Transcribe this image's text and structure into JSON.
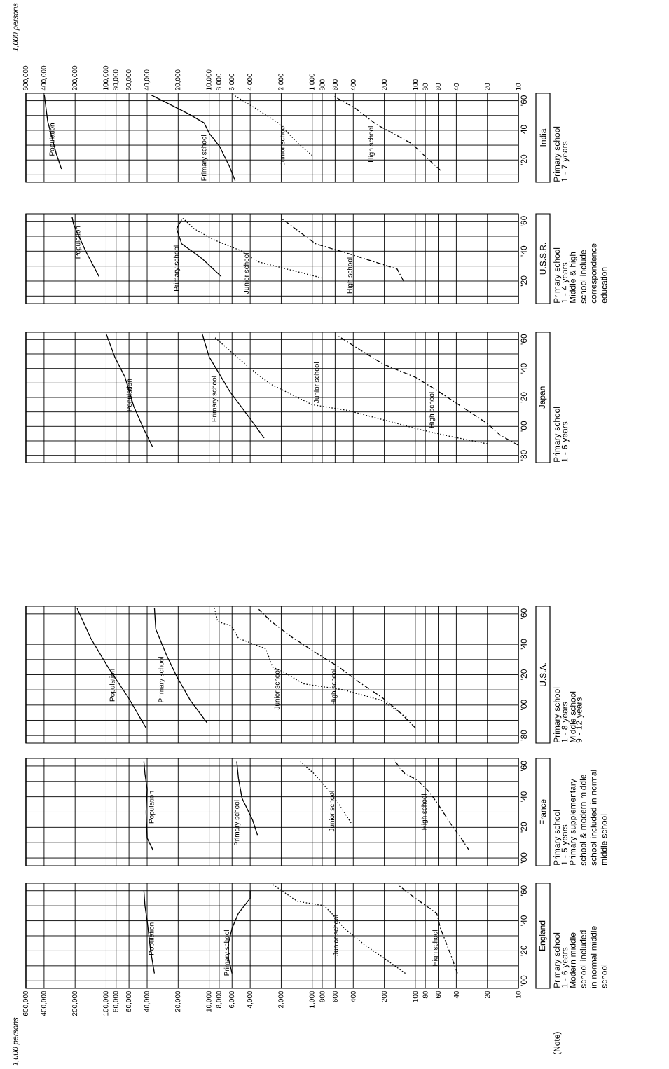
{
  "chart_data": [
    {
      "type": "line",
      "orientation": "horizontal",
      "log": "x",
      "grid": true,
      "ylim": [
        1895,
        1965
      ],
      "xlim": [
        600000,
        10
      ],
      "yticks": [
        {
          "value": 1900,
          "label": "’00"
        },
        {
          "value": 1910,
          "label": null
        },
        {
          "value": 1920,
          "label": "’20"
        },
        {
          "value": 1930,
          "label": null
        },
        {
          "value": 1940,
          "label": "’40"
        },
        {
          "value": 1950,
          "label": null
        },
        {
          "value": 1960,
          "label": "’60"
        }
      ],
      "xticks": [
        {
          "value": 600000,
          "label": "600,000"
        },
        {
          "value": 400000,
          "label": "400,000"
        },
        {
          "value": 200000,
          "label": "200,000"
        },
        {
          "value": 100000,
          "label": "100,000"
        },
        {
          "value": 80000,
          "label": "80,000"
        },
        {
          "value": 60000,
          "label": "60,000"
        },
        {
          "value": 40000,
          "label": "40,000"
        },
        {
          "value": 20000,
          "label": "20,000"
        },
        {
          "value": 10000,
          "label": "10,000"
        },
        {
          "value": 8000,
          "label": "8,000"
        },
        {
          "value": 6000,
          "label": "6,000"
        },
        {
          "value": 4000,
          "label": "4,000"
        },
        {
          "value": 2000,
          "label": "2,000"
        },
        {
          "value": 1000,
          "label": "1,000"
        },
        {
          "value": 800,
          "label": "800"
        },
        {
          "value": 600,
          "label": "600"
        },
        {
          "value": 400,
          "label": "400"
        },
        {
          "value": 200,
          "label": "200"
        },
        {
          "value": 100,
          "label": "100"
        },
        {
          "value": 80,
          "label": "80"
        },
        {
          "value": 60,
          "label": "60"
        },
        {
          "value": 40,
          "label": "40"
        },
        {
          "value": 20,
          "label": "20"
        },
        {
          "value": 10,
          "label": "10"
        }
      ],
      "series": [
        {
          "name": "Population",
          "color": "#000000",
          "line_style": "solid",
          "x": [
            1905,
            1920,
            1940,
            1950,
            1960
          ],
          "values": [
            34000,
            37000,
            40000,
            42000,
            43000
          ]
        },
        {
          "name": "Primary school",
          "color": "#000000",
          "line_style": "solid",
          "x": [
            1905,
            1915,
            1925,
            1935,
            1945,
            1955,
            1960
          ],
          "values": [
            6000,
            6500,
            6500,
            6000,
            5200,
            4000,
            4000
          ]
        },
        {
          "name": "Junior school",
          "color": "#000000",
          "line_style": "dotted",
          "x": [
            1905,
            1915,
            1924,
            1935,
            1945,
            1950,
            1953,
            1964
          ],
          "values": [
            125,
            200,
            310,
            490,
            650,
            765,
            1400,
            2400
          ]
        },
        {
          "name": "High school",
          "color": "#000000",
          "line_style": "dashed",
          "x": [
            1905,
            1915,
            1925,
            1935,
            1945,
            1955,
            1964
          ],
          "values": [
            39,
            44,
            50,
            57,
            62,
            100,
            148
          ]
        }
      ],
      "annotations": [
        "England",
        "1,000 persons",
        "(Note)",
        "Primary school",
        "1 - 6 years",
        "Modern middle school included in normal middle school"
      ]
    },
    {
      "type": "line",
      "orientation": "horizontal",
      "log": "x",
      "grid": true,
      "tick_labels": "y",
      "ylim": [
        1895,
        1965
      ],
      "xlim": [
        600000,
        10
      ],
      "yticks": [
        {
          "value": 1900,
          "label": "’00"
        },
        {
          "value": 1910,
          "label": null
        },
        {
          "value": 1920,
          "label": "’20"
        },
        {
          "value": 1930,
          "label": null
        },
        {
          "value": 1940,
          "label": "’40"
        },
        {
          "value": 1950,
          "label": null
        },
        {
          "value": 1960,
          "label": "’60"
        }
      ],
      "xticks": [
        {
          "value": 600000,
          "label": null
        },
        {
          "value": 400000,
          "label": null
        },
        {
          "value": 200000,
          "label": null
        },
        {
          "value": 100000,
          "label": null
        },
        {
          "value": 80000,
          "label": null
        },
        {
          "value": 60000,
          "label": null
        },
        {
          "value": 40000,
          "label": null
        },
        {
          "value": 20000,
          "label": null
        },
        {
          "value": 10000,
          "label": null
        },
        {
          "value": 8000,
          "label": null
        },
        {
          "value": 6000,
          "label": null
        },
        {
          "value": 4000,
          "label": null
        },
        {
          "value": 2000,
          "label": null
        },
        {
          "value": 1000,
          "label": null
        },
        {
          "value": 800,
          "label": null
        },
        {
          "value": 600,
          "label": null
        },
        {
          "value": 400,
          "label": null
        },
        {
          "value": 200,
          "label": null
        },
        {
          "value": 100,
          "label": null
        },
        {
          "value": 80,
          "label": null
        },
        {
          "value": 60,
          "label": null
        },
        {
          "value": 40,
          "label": null
        },
        {
          "value": 20,
          "label": null
        },
        {
          "value": 10,
          "label": null
        }
      ],
      "series": [
        {
          "name": "Population",
          "color": "#000000",
          "line_style": "solid",
          "x": [
            1905,
            1913,
            1930,
            1945,
            1955,
            1963
          ],
          "values": [
            35000,
            40000,
            41000,
            40000,
            42000,
            43000
          ]
        },
        {
          "name": "Primary school",
          "color": "#000000",
          "line_style": "solid",
          "x": [
            1915,
            1925,
            1939,
            1952,
            1963
          ],
          "values": [
            3400,
            3800,
            4800,
            5200,
            5400
          ]
        },
        {
          "name": "Junior school",
          "color": "#000000",
          "line_style": "dotted",
          "x": [
            1923,
            1935,
            1945,
            1955,
            1963
          ],
          "values": [
            420,
            550,
            710,
            960,
            1300
          ]
        },
        {
          "name": "High school",
          "color": "#000000",
          "line_style": "dashed",
          "x": [
            1905,
            1913,
            1921,
            1935,
            1943,
            1951,
            1955,
            1959,
            1964
          ],
          "values": [
            30,
            36,
            44,
            60,
            73,
            96,
            126,
            142,
            160
          ]
        }
      ],
      "annotations": [
        "France",
        "Primary school",
        "1 - 5 years",
        "Primary supplementary school & modern middle school included in normal middle school"
      ]
    },
    {
      "type": "line",
      "orientation": "horizontal",
      "log": "x",
      "grid": true,
      "tick_labels": "y",
      "ylim": [
        1875,
        1965
      ],
      "xlim": [
        600000,
        10
      ],
      "yticks": [
        {
          "value": 1880,
          "label": "’80"
        },
        {
          "value": 1890,
          "label": null
        },
        {
          "value": 1900,
          "label": "’00"
        },
        {
          "value": 1910,
          "label": null
        },
        {
          "value": 1920,
          "label": "’20"
        },
        {
          "value": 1930,
          "label": null
        },
        {
          "value": 1940,
          "label": "’40"
        },
        {
          "value": 1950,
          "label": null
        },
        {
          "value": 1960,
          "label": "’60"
        }
      ],
      "xticks": [
        {
          "value": 600000,
          "label": null
        },
        {
          "value": 400000,
          "label": null
        },
        {
          "value": 200000,
          "label": null
        },
        {
          "value": 100000,
          "label": null
        },
        {
          "value": 80000,
          "label": null
        },
        {
          "value": 60000,
          "label": null
        },
        {
          "value": 40000,
          "label": null
        },
        {
          "value": 20000,
          "label": null
        },
        {
          "value": 10000,
          "label": null
        },
        {
          "value": 8000,
          "label": null
        },
        {
          "value": 6000,
          "label": null
        },
        {
          "value": 4000,
          "label": null
        },
        {
          "value": 2000,
          "label": null
        },
        {
          "value": 1000,
          "label": null
        },
        {
          "value": 800,
          "label": null
        },
        {
          "value": 600,
          "label": null
        },
        {
          "value": 400,
          "label": null
        },
        {
          "value": 200,
          "label": null
        },
        {
          "value": 100,
          "label": null
        },
        {
          "value": 80,
          "label": null
        },
        {
          "value": 60,
          "label": null
        },
        {
          "value": 40,
          "label": null
        },
        {
          "value": 20,
          "label": null
        },
        {
          "value": 10,
          "label": null
        }
      ],
      "series": [
        {
          "name": "Population",
          "color": "#000000",
          "line_style": "solid",
          "x": [
            1885,
            1905,
            1925,
            1944,
            1964
          ],
          "values": [
            41000,
            61000,
            96000,
            141000,
            192000
          ]
        },
        {
          "name": "Primary school",
          "color": "#000000",
          "line_style": "solid",
          "x": [
            1888,
            1903,
            1919,
            1933,
            1950,
            1964
          ],
          "values": [
            10400,
            15200,
            20700,
            26000,
            33000,
            34000
          ]
        },
        {
          "name": "Junior school",
          "color": "#000000",
          "line_style": "dotted",
          "x": [
            1892,
            1903,
            1910,
            1914,
            1922,
            1925,
            1937,
            1944,
            1952,
            1955,
            1964
          ],
          "values": [
            122,
            210,
            495,
            1210,
            1920,
            2420,
            2820,
            5200,
            6070,
            8260,
            8900
          ]
        },
        {
          "name": "High school",
          "color": "#000000",
          "line_style": "dashed",
          "x": [
            1885,
            1895,
            1905,
            1915,
            1925,
            1935,
            1945,
            1955,
            1963
          ],
          "values": [
            100,
            140,
            210,
            350,
            550,
            950,
            1600,
            2500,
            3300
          ]
        }
      ],
      "annotations": [
        "U.S.A.",
        "Primary school",
        "1 - 8 years",
        "Middle school",
        "9 - 12 years"
      ]
    },
    {
      "type": "line",
      "orientation": "horizontal",
      "log": "x",
      "grid": true,
      "tick_labels": "y",
      "ylim": [
        1875,
        1965
      ],
      "xlim": [
        600000,
        10
      ],
      "yticks": [
        {
          "value": 1880,
          "label": "’80"
        },
        {
          "value": 1890,
          "label": null
        },
        {
          "value": 1900,
          "label": "’00"
        },
        {
          "value": 1910,
          "label": null
        },
        {
          "value": 1920,
          "label": "’20"
        },
        {
          "value": 1930,
          "label": null
        },
        {
          "value": 1940,
          "label": "’40"
        },
        {
          "value": 1950,
          "label": null
        },
        {
          "value": 1960,
          "label": "’60"
        }
      ],
      "xticks": [
        {
          "value": 600000,
          "label": null
        },
        {
          "value": 400000,
          "label": null
        },
        {
          "value": 200000,
          "label": null
        },
        {
          "value": 100000,
          "label": null
        },
        {
          "value": 80000,
          "label": null
        },
        {
          "value": 60000,
          "label": null
        },
        {
          "value": 40000,
          "label": null
        },
        {
          "value": 20000,
          "label": null
        },
        {
          "value": 10000,
          "label": null
        },
        {
          "value": 8000,
          "label": null
        },
        {
          "value": 6000,
          "label": null
        },
        {
          "value": 4000,
          "label": null
        },
        {
          "value": 2000,
          "label": null
        },
        {
          "value": 1000,
          "label": null
        },
        {
          "value": 800,
          "label": null
        },
        {
          "value": 600,
          "label": null
        },
        {
          "value": 400,
          "label": null
        },
        {
          "value": 200,
          "label": null
        },
        {
          "value": 100,
          "label": null
        },
        {
          "value": 80,
          "label": null
        },
        {
          "value": 60,
          "label": null
        },
        {
          "value": 40,
          "label": null
        },
        {
          "value": 20,
          "label": null
        },
        {
          "value": 10,
          "label": null
        }
      ],
      "series": [
        {
          "name": "Population",
          "color": "#000000",
          "line_style": "solid",
          "x": [
            1886,
            1898,
            1914,
            1934,
            1948,
            1964
          ],
          "values": [
            35500,
            43000,
            54000,
            65600,
            82500,
            100000
          ]
        },
        {
          "name": "Primary school",
          "color": "#000000",
          "line_style": "solid",
          "x": [
            1892,
            1905,
            1924,
            1936,
            1948,
            1964
          ],
          "values": [
            2930,
            3980,
            6300,
            7940,
            10000,
            11700
          ]
        },
        {
          "name": "Junior school",
          "color": "#000000",
          "line_style": "dotted",
          "x": [
            1888,
            1893,
            1898,
            1911,
            1915,
            1929,
            1936,
            1948,
            1962
          ],
          "values": [
            20,
            45,
            92,
            450,
            1000,
            2500,
            3400,
            5400,
            9000
          ]
        },
        {
          "name": "High school",
          "color": "#000000",
          "line_style": "dashed",
          "x": [
            1887,
            1894,
            1902,
            1915,
            1925,
            1934,
            1943,
            1955,
            1963
          ],
          "values": [
            10,
            15,
            20,
            38,
            62,
            100,
            205,
            385,
            575
          ]
        }
      ],
      "annotations": [
        "Japan",
        "Primary school",
        "1 - 6 years"
      ]
    },
    {
      "type": "line",
      "orientation": "horizontal",
      "log": "x",
      "grid": true,
      "tick_labels": "y",
      "ylim": [
        1905,
        1965
      ],
      "xlim": [
        600000,
        10
      ],
      "yticks": [
        {
          "value": 1910,
          "label": null
        },
        {
          "value": 1920,
          "label": "’20"
        },
        {
          "value": 1930,
          "label": null
        },
        {
          "value": 1940,
          "label": "’40"
        },
        {
          "value": 1950,
          "label": null
        },
        {
          "value": 1960,
          "label": "’60"
        }
      ],
      "xticks": [
        {
          "value": 600000,
          "label": null
        },
        {
          "value": 400000,
          "label": null
        },
        {
          "value": 200000,
          "label": null
        },
        {
          "value": 100000,
          "label": null
        },
        {
          "value": 80000,
          "label": null
        },
        {
          "value": 60000,
          "label": null
        },
        {
          "value": 40000,
          "label": null
        },
        {
          "value": 20000,
          "label": null
        },
        {
          "value": 10000,
          "label": null
        },
        {
          "value": 8000,
          "label": null
        },
        {
          "value": 6000,
          "label": null
        },
        {
          "value": 4000,
          "label": null
        },
        {
          "value": 2000,
          "label": null
        },
        {
          "value": 1000,
          "label": null
        },
        {
          "value": 800,
          "label": null
        },
        {
          "value": 600,
          "label": null
        },
        {
          "value": 400,
          "label": null
        },
        {
          "value": 200,
          "label": null
        },
        {
          "value": 100,
          "label": null
        },
        {
          "value": 80,
          "label": null
        },
        {
          "value": 60,
          "label": null
        },
        {
          "value": 40,
          "label": null
        },
        {
          "value": 20,
          "label": null
        },
        {
          "value": 10,
          "label": null
        }
      ],
      "series": [
        {
          "name": "Population",
          "color": "#000000",
          "line_style": "solid",
          "x": [
            1923,
            1940,
            1958,
            1963
          ],
          "values": [
            117000,
            158000,
            207000,
            214000
          ]
        },
        {
          "name": "Primary school",
          "color": "#000000",
          "line_style": "solid",
          "x": [
            1923,
            1935,
            1945,
            1955,
            1961
          ],
          "values": [
            7640,
            11700,
            18500,
            20700,
            18500
          ]
        },
        {
          "name": "Junior school",
          "color": "#000000",
          "line_style": "dotted",
          "x": [
            1922,
            1929,
            1933,
            1940,
            1948,
            1955,
            1962
          ],
          "values": [
            800,
            2000,
            3400,
            4800,
            9300,
            14000,
            18000
          ]
        },
        {
          "name": "High school",
          "color": "#000000",
          "line_style": "dashed",
          "x": [
            1920,
            1928,
            1937,
            1945,
            1962
          ],
          "values": [
            130,
            150,
            385,
            930,
            2000
          ]
        }
      ],
      "annotations": [
        "U.S.S.R.",
        "Primary school",
        "1 - 4 years",
        "Middle & high school include correspondence education"
      ]
    },
    {
      "type": "line",
      "orientation": "horizontal",
      "log": "x",
      "grid": true,
      "ylim": [
        1905,
        1965
      ],
      "xlim": [
        600000,
        10
      ],
      "yticks": [
        {
          "value": 1910,
          "label": null
        },
        {
          "value": 1920,
          "label": "’20"
        },
        {
          "value": 1930,
          "label": null
        },
        {
          "value": 1940,
          "label": "’40"
        },
        {
          "value": 1950,
          "label": null
        },
        {
          "value": 1960,
          "label": "’60"
        }
      ],
      "xticks": [
        {
          "value": 600000,
          "label": "600,000"
        },
        {
          "value": 400000,
          "label": "400,000"
        },
        {
          "value": 200000,
          "label": "200,000"
        },
        {
          "value": 100000,
          "label": "100,000"
        },
        {
          "value": 80000,
          "label": "80,000"
        },
        {
          "value": 60000,
          "label": "60,000"
        },
        {
          "value": 40000,
          "label": "40,000"
        },
        {
          "value": 20000,
          "label": "20,000"
        },
        {
          "value": 10000,
          "label": "10,000"
        },
        {
          "value": 8000,
          "label": "8,000"
        },
        {
          "value": 6000,
          "label": "6,000"
        },
        {
          "value": 4000,
          "label": "4,000"
        },
        {
          "value": 2000,
          "label": "2,000"
        },
        {
          "value": 1000,
          "label": "1,000"
        },
        {
          "value": 800,
          "label": "800"
        },
        {
          "value": 600,
          "label": "600"
        },
        {
          "value": 400,
          "label": "400"
        },
        {
          "value": 200,
          "label": "200"
        },
        {
          "value": 100,
          "label": "100"
        },
        {
          "value": 80,
          "label": "80"
        },
        {
          "value": 60,
          "label": "60"
        },
        {
          "value": 40,
          "label": "40"
        },
        {
          "value": 20,
          "label": "20"
        },
        {
          "value": 10,
          "label": "10"
        }
      ],
      "series": [
        {
          "name": "Population",
          "color": "#000000",
          "line_style": "solid",
          "x": [
            1914,
            1924,
            1946,
            1964
          ],
          "values": [
            271000,
            304000,
            369000,
            398000
          ]
        },
        {
          "name": "Primary school",
          "color": "#000000",
          "line_style": "solid",
          "x": [
            1906,
            1915,
            1929,
            1938,
            1945,
            1951,
            1964
          ],
          "values": [
            5600,
            6300,
            7900,
            10000,
            11200,
            15800,
            37000
          ]
        },
        {
          "name": "Junior school",
          "color": "#000000",
          "line_style": "dotted",
          "x": [
            1923,
            1931,
            1945,
            1954,
            1964
          ],
          "values": [
            1000,
            1360,
            2150,
            3400,
            5850
          ]
        },
        {
          "name": "High school",
          "color": "#000000",
          "line_style": "dashed",
          "x": [
            1913,
            1922,
            1931,
            1944,
            1955,
            1963
          ],
          "values": [
            57,
            79,
            108,
            239,
            385,
            620
          ]
        }
      ],
      "annotations": [
        "India",
        "1,000 persons",
        "Primary school",
        "1 - 7 years"
      ]
    }
  ]
}
